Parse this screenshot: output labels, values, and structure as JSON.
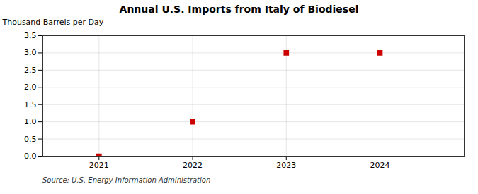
{
  "chart_data": {
    "type": "scatter",
    "title": "Annual U.S. Imports from Italy of Biodiesel",
    "ylabel": "Thousand Barrels per Day",
    "source": "Source: U.S. Energy Information Administration",
    "x": [
      2021,
      2022,
      2023,
      2024
    ],
    "values": [
      0,
      1.0,
      3.0,
      3.0
    ],
    "color": "#cc0000",
    "marker": "square",
    "xlim": [
      2020.4,
      2024.9
    ],
    "xticks": [
      2021,
      2022,
      2023,
      2024
    ],
    "ylim": [
      0.0,
      3.5
    ],
    "yticks": [
      {
        "value": 0.0,
        "label": "0.0"
      },
      0.5,
      {
        "value": 1.0,
        "label": "1.0"
      },
      1.5,
      {
        "value": 2.0,
        "label": "2.0"
      },
      2.5,
      {
        "value": 3.0,
        "label": "3.0"
      },
      3.5
    ],
    "grid": true
  }
}
